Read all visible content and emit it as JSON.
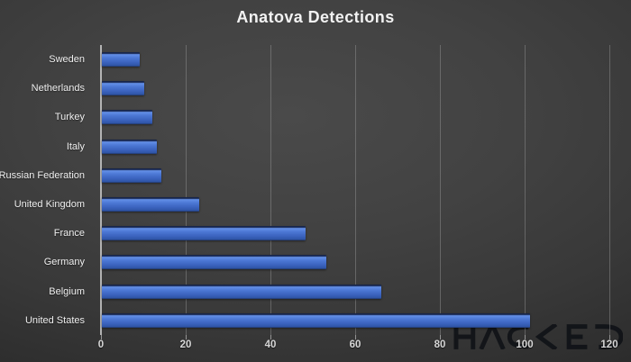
{
  "chart_data": {
    "type": "bar",
    "orientation": "horizontal",
    "title": "Anatova Detections",
    "categories": [
      "Sweden",
      "Netherlands",
      "Turkey",
      "Italy",
      "Russian Federation",
      "United Kingdom",
      "France",
      "Germany",
      "Belgium",
      "United States"
    ],
    "values": [
      9,
      10,
      12,
      13,
      14,
      23,
      48,
      53,
      66,
      101
    ],
    "xlabel": "",
    "ylabel": "",
    "xlim": [
      0,
      120
    ],
    "x_ticks": [
      0,
      20,
      40,
      60,
      80,
      100,
      120
    ],
    "grid": "vertical-only",
    "legend": "none",
    "colors": {
      "bar_top": "#6490e8",
      "bar_bottom": "#2e54a4",
      "bar_base": "#4472c4",
      "background": "#424242",
      "title_text": "#f2f2f2",
      "category_text": "#f0f0f0",
      "tick_text": "#d6d6d6",
      "gridline": "#8a8a8a",
      "axis_line": "#c8c8c8"
    }
  },
  "watermark": {
    "text": "HACKED",
    "color": "#0c0f14"
  }
}
